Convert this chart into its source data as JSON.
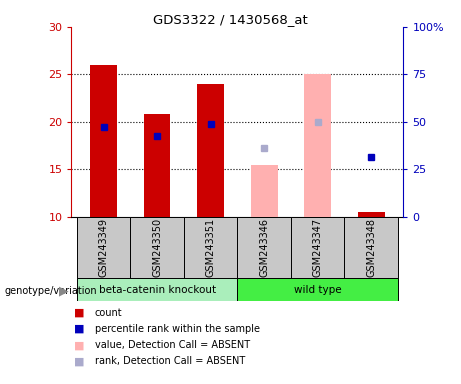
{
  "title": "GDS3322 / 1430568_at",
  "samples": [
    "GSM243349",
    "GSM243350",
    "GSM243351",
    "GSM243346",
    "GSM243347",
    "GSM243348"
  ],
  "present_bars": [
    {
      "sample_idx": 0,
      "value": 26.0,
      "rank": 19.5
    },
    {
      "sample_idx": 1,
      "value": 20.8,
      "rank": 18.5
    },
    {
      "sample_idx": 2,
      "value": 24.0,
      "rank": 19.8
    },
    {
      "sample_idx": 5,
      "value": 10.5,
      "rank": 16.3
    }
  ],
  "absent_bars": [
    {
      "sample_idx": 3,
      "value": 15.5,
      "rank": 17.3
    },
    {
      "sample_idx": 4,
      "value": 25.0,
      "rank": 20.0
    }
  ],
  "ylim_left": [
    10,
    30
  ],
  "ylim_right": [
    0,
    100
  ],
  "yticks_left": [
    10,
    15,
    20,
    25,
    30
  ],
  "yticks_right": [
    0,
    25,
    50,
    75,
    100
  ],
  "ytick_right_labels": [
    "0",
    "25",
    "50",
    "75",
    "100%"
  ],
  "bar_width": 0.5,
  "red_color": "#CC0000",
  "pink_color": "#FFB0B0",
  "blue_color": "#0000BB",
  "blue_absent_color": "#AAAACC",
  "left_tick_color": "#CC0000",
  "right_tick_color": "#0000BB",
  "sample_box_color": "#C8C8C8",
  "group1_color": "#AAEEBB",
  "group2_color": "#44EE44",
  "group1_label": "beta-catenin knockout",
  "group2_label": "wild type",
  "legend_items": [
    {
      "label": "count",
      "color": "#CC0000"
    },
    {
      "label": "percentile rank within the sample",
      "color": "#0000BB"
    },
    {
      "label": "value, Detection Call = ABSENT",
      "color": "#FFB0B0"
    },
    {
      "label": "rank, Detection Call = ABSENT",
      "color": "#AAAACC"
    }
  ],
  "genotype_label": "genotype/variation"
}
